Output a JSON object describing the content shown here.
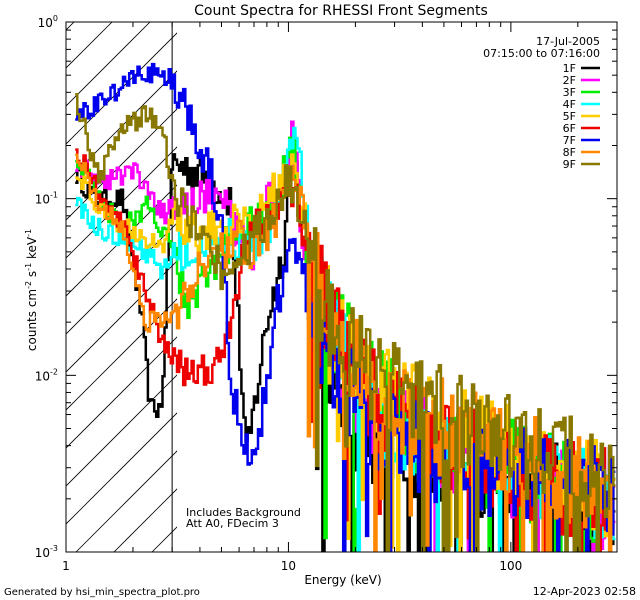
{
  "chart_data": {
    "type": "line",
    "title": "Count Spectra for RHESSI Front Segments",
    "xlabel": "Energy (keV)",
    "ylabel_parts": [
      "counts cm",
      "-2",
      " s",
      "-1",
      " keV",
      "-1"
    ],
    "xscale": "log",
    "yscale": "log",
    "xlim": [
      1,
      300
    ],
    "ylim": [
      0.001,
      1
    ],
    "xticks": [
      {
        "value": 1,
        "label": "1"
      },
      {
        "value": 10,
        "label": "10"
      },
      {
        "value": 100,
        "label": "100"
      }
    ],
    "yticks": [
      {
        "value": 1,
        "base": "10",
        "exp": "0"
      },
      {
        "value": 0.1,
        "base": "10",
        "exp": "-1"
      },
      {
        "value": 0.01,
        "base": "10",
        "exp": "-2"
      },
      {
        "value": 0.001,
        "base": "10",
        "exp": "-3"
      }
    ],
    "date": "17-Jul-2005",
    "time_range": "07:15:00 to 07:16:00",
    "annotations": [
      "Includes Background",
      "Att A0, FDecim 3"
    ],
    "hatched_region_x": [
      1,
      3
    ],
    "legend_position": "top-right",
    "series": [
      {
        "name": "1F",
        "color": "#000000",
        "anchors": [
          [
            1.1,
            0.14
          ],
          [
            1.35,
            0.1
          ],
          [
            1.8,
            0.1
          ],
          [
            2.2,
            0.021
          ],
          [
            2.4,
            0.0065
          ],
          [
            2.7,
            0.0065
          ],
          [
            3.0,
            0.16
          ],
          [
            4.0,
            0.14
          ],
          [
            5.5,
            0.1
          ],
          [
            6.5,
            0.0033
          ],
          [
            8.0,
            0.02
          ],
          [
            9.5,
            0.05
          ],
          [
            10.5,
            0.25
          ],
          [
            12.0,
            0.03
          ],
          [
            14.0,
            0.012
          ],
          [
            20.0,
            0.005
          ],
          [
            40.0,
            0.0035
          ],
          [
            80.0,
            0.0028
          ],
          [
            150.0,
            0.0025
          ],
          [
            290.0,
            0.0015
          ]
        ]
      },
      {
        "name": "2F",
        "color": "#ff00ff",
        "anchors": [
          [
            1.1,
            0.16
          ],
          [
            1.5,
            0.12
          ],
          [
            2.0,
            0.15
          ],
          [
            2.3,
            0.11
          ],
          [
            2.7,
            0.08
          ],
          [
            3.0,
            0.09
          ],
          [
            4.0,
            0.1
          ],
          [
            5.0,
            0.11
          ],
          [
            6.0,
            0.06
          ],
          [
            7.0,
            0.05
          ],
          [
            8.0,
            0.09
          ],
          [
            9.5,
            0.12
          ],
          [
            10.5,
            0.22
          ],
          [
            12.0,
            0.04
          ],
          [
            15.0,
            0.015
          ],
          [
            25.0,
            0.006
          ],
          [
            50.0,
            0.004
          ],
          [
            100.0,
            0.003
          ],
          [
            200.0,
            0.002
          ],
          [
            290.0,
            0.0018
          ]
        ]
      },
      {
        "name": "3F",
        "color": "#00ee00",
        "anchors": [
          [
            1.1,
            0.18
          ],
          [
            1.5,
            0.09
          ],
          [
            1.8,
            0.07
          ],
          [
            2.3,
            0.09
          ],
          [
            2.6,
            0.07
          ],
          [
            3.0,
            0.055
          ],
          [
            3.5,
            0.025
          ],
          [
            4.0,
            0.03
          ],
          [
            5.0,
            0.05
          ],
          [
            6.0,
            0.06
          ],
          [
            7.0,
            0.08
          ],
          [
            8.5,
            0.09
          ],
          [
            10.5,
            0.21
          ],
          [
            12.0,
            0.05
          ],
          [
            16.0,
            0.02
          ],
          [
            25.0,
            0.008
          ],
          [
            50.0,
            0.004
          ],
          [
            100.0,
            0.003
          ],
          [
            200.0,
            0.0022
          ],
          [
            290.0,
            0.002
          ]
        ]
      },
      {
        "name": "4F",
        "color": "#00ffff",
        "anchors": [
          [
            1.1,
            0.1
          ],
          [
            1.3,
            0.07
          ],
          [
            1.8,
            0.06
          ],
          [
            2.3,
            0.05
          ],
          [
            2.7,
            0.04
          ],
          [
            3.0,
            0.05
          ],
          [
            3.6,
            0.05
          ],
          [
            4.5,
            0.06
          ],
          [
            5.5,
            0.06
          ],
          [
            6.5,
            0.05
          ],
          [
            8.0,
            0.06
          ],
          [
            10.0,
            0.15
          ],
          [
            11.0,
            0.24
          ],
          [
            12.5,
            0.05
          ],
          [
            16.0,
            0.015
          ],
          [
            25.0,
            0.006
          ],
          [
            50.0,
            0.0035
          ],
          [
            100.0,
            0.0028
          ],
          [
            200.0,
            0.0022
          ],
          [
            290.0,
            0.0018
          ]
        ]
      },
      {
        "name": "5F",
        "color": "#ffcc00",
        "anchors": [
          [
            1.1,
            0.14
          ],
          [
            1.5,
            0.08
          ],
          [
            1.8,
            0.07
          ],
          [
            2.3,
            0.06
          ],
          [
            2.7,
            0.05
          ],
          [
            3.0,
            0.08
          ],
          [
            4.0,
            0.06
          ],
          [
            5.0,
            0.07
          ],
          [
            6.5,
            0.08
          ],
          [
            8.0,
            0.09
          ],
          [
            10.0,
            0.16
          ],
          [
            11.0,
            0.12
          ],
          [
            13.0,
            0.04
          ],
          [
            16.0,
            0.02
          ],
          [
            25.0,
            0.008
          ],
          [
            50.0,
            0.005
          ],
          [
            100.0,
            0.0035
          ],
          [
            200.0,
            0.0025
          ],
          [
            290.0,
            0.0022
          ]
        ]
      },
      {
        "name": "6F",
        "color": "#ee0000",
        "anchors": [
          [
            1.1,
            0.2
          ],
          [
            1.5,
            0.09
          ],
          [
            1.8,
            0.07
          ],
          [
            2.3,
            0.03
          ],
          [
            2.7,
            0.015
          ],
          [
            3.0,
            0.013
          ],
          [
            4.0,
            0.01
          ],
          [
            5.0,
            0.012
          ],
          [
            6.5,
            0.06
          ],
          [
            8.0,
            0.08
          ],
          [
            10.0,
            0.12
          ],
          [
            11.0,
            0.09
          ],
          [
            13.0,
            0.04
          ],
          [
            16.0,
            0.018
          ],
          [
            25.0,
            0.007
          ],
          [
            50.0,
            0.004
          ],
          [
            100.0,
            0.003
          ],
          [
            200.0,
            0.0022
          ],
          [
            290.0,
            0.002
          ]
        ]
      },
      {
        "name": "7F",
        "color": "#0000ee",
        "anchors": [
          [
            1.1,
            0.28
          ],
          [
            1.4,
            0.36
          ],
          [
            1.8,
            0.42
          ],
          [
            2.2,
            0.52
          ],
          [
            2.6,
            0.5
          ],
          [
            3.0,
            0.48
          ],
          [
            3.5,
            0.3
          ],
          [
            4.0,
            0.18
          ],
          [
            4.5,
            0.13
          ],
          [
            5.0,
            0.07
          ],
          [
            5.5,
            0.01
          ],
          [
            6.0,
            0.005
          ],
          [
            7.0,
            0.003
          ],
          [
            8.0,
            0.01
          ],
          [
            10.0,
            0.06
          ],
          [
            11.0,
            0.05
          ],
          [
            13.0,
            0.02
          ],
          [
            16.0,
            0.01
          ],
          [
            25.0,
            0.005
          ],
          [
            50.0,
            0.0035
          ],
          [
            100.0,
            0.0028
          ],
          [
            200.0,
            0.0025
          ],
          [
            290.0,
            0.002
          ]
        ]
      },
      {
        "name": "8F",
        "color": "#ff8800",
        "anchors": [
          [
            1.1,
            0.18
          ],
          [
            1.4,
            0.1
          ],
          [
            1.8,
            0.07
          ],
          [
            2.3,
            0.02
          ],
          [
            2.7,
            0.02
          ],
          [
            3.0,
            0.02
          ],
          [
            4.0,
            0.04
          ],
          [
            5.0,
            0.05
          ],
          [
            6.0,
            0.06
          ],
          [
            7.0,
            0.05
          ],
          [
            8.5,
            0.07
          ],
          [
            10.0,
            0.14
          ],
          [
            11.0,
            0.11
          ],
          [
            13.0,
            0.04
          ],
          [
            16.0,
            0.018
          ],
          [
            25.0,
            0.008
          ],
          [
            50.0,
            0.005
          ],
          [
            100.0,
            0.0035
          ],
          [
            200.0,
            0.0025
          ],
          [
            290.0,
            0.0022
          ]
        ]
      },
      {
        "name": "9F",
        "color": "#887700",
        "anchors": [
          [
            1.1,
            0.4
          ],
          [
            1.4,
            0.13
          ],
          [
            1.8,
            0.25
          ],
          [
            2.3,
            0.3
          ],
          [
            2.7,
            0.28
          ],
          [
            3.0,
            0.12
          ],
          [
            4.0,
            0.06
          ],
          [
            5.0,
            0.04
          ],
          [
            6.0,
            0.05
          ],
          [
            7.0,
            0.06
          ],
          [
            8.5,
            0.08
          ],
          [
            10.0,
            0.13
          ],
          [
            11.0,
            0.1
          ],
          [
            13.0,
            0.04
          ],
          [
            16.0,
            0.018
          ],
          [
            25.0,
            0.009
          ],
          [
            50.0,
            0.006
          ],
          [
            100.0,
            0.004
          ],
          [
            200.0,
            0.003
          ],
          [
            290.0,
            0.0025
          ]
        ]
      }
    ]
  },
  "footer": {
    "generated_by": "Generated by hsi_min_spectra_plot.pro",
    "timestamp": "12-Apr-2023 02:58"
  }
}
